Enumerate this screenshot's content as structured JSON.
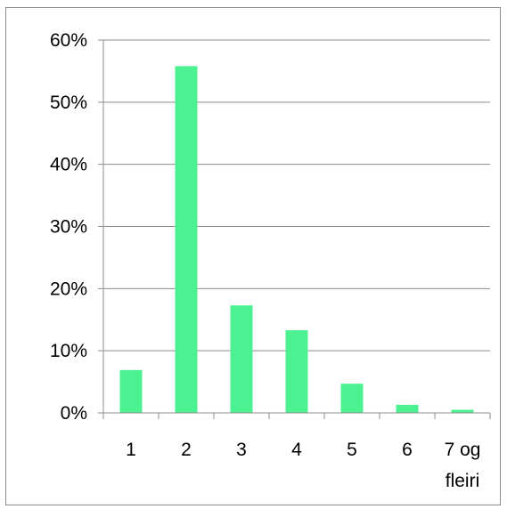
{
  "chart_data": {
    "type": "bar",
    "title": "",
    "xlabel": "",
    "ylabel": "",
    "categories": [
      [
        "1"
      ],
      [
        "2"
      ],
      [
        "3"
      ],
      [
        "4"
      ],
      [
        "5"
      ],
      [
        "6"
      ],
      [
        "7 og",
        "fleiri"
      ]
    ],
    "values": [
      6.9,
      55.8,
      17.3,
      13.3,
      4.7,
      1.3,
      0.5
    ],
    "y_ticks": [
      "0%",
      "10%",
      "20%",
      "30%",
      "40%",
      "50%",
      "60%"
    ],
    "ylim": [
      0,
      60
    ],
    "y_unit": "%",
    "grid": true,
    "legend": "none",
    "bar_color": "#4cf191",
    "grid_color": "#8c8c8c",
    "axis_color": "#8c8c8c"
  }
}
